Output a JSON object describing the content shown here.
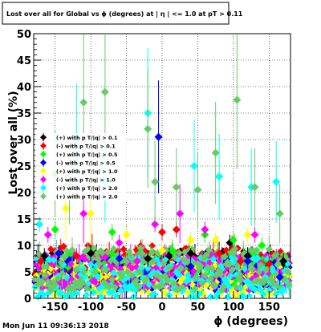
{
  "chart_data": {
    "type": "scatter",
    "title": "Lost over all for Global vs ϕ (degrees) at | η | <= 1.0 at pT > 0.11",
    "xlabel": "ϕ (degrees)",
    "ylabel": "Lost over all (%)",
    "xlim": [
      -180,
      180
    ],
    "ylim": [
      0,
      50
    ],
    "xticks": [
      -150,
      -100,
      -50,
      0,
      50,
      100,
      150
    ],
    "yticks": [
      0,
      5,
      10,
      15,
      20,
      25,
      30,
      35,
      40,
      45,
      50
    ],
    "grid": true,
    "legend_position": "middle-left",
    "timestamp": "Mon Jun 11 09:36:13 2018",
    "series": [
      {
        "name": "(+) with p T/|q| > 0.1",
        "color": "#000000",
        "marker": "diamond",
        "seed": 11,
        "base": 6.0,
        "spread": 3.0,
        "highlights": [
          [
            -165,
            8
          ],
          [
            -100,
            8.5
          ],
          [
            -20,
            7.5
          ],
          [
            10,
            8
          ],
          [
            40,
            8.5
          ],
          [
            95,
            10.5
          ],
          [
            120,
            8
          ],
          [
            170,
            7
          ]
        ]
      },
      {
        "name": "(-) with p T/|q| > 0.1",
        "color": "#ff0000",
        "marker": "diamond",
        "seed": 23,
        "base": 6.5,
        "spread": 3.5,
        "highlights": [
          [
            -170,
            7
          ],
          [
            -120,
            8
          ],
          [
            0,
            12.5
          ],
          [
            20,
            13
          ],
          [
            80,
            8.5
          ],
          [
            110,
            7
          ],
          [
            150,
            6.5
          ]
        ]
      },
      {
        "name": "(+) with p T/|q| > 0.5",
        "color": "#00ff00",
        "marker": "diamond",
        "seed": 37,
        "base": 5.0,
        "spread": 3.5,
        "highlights": [
          [
            -150,
            13
          ],
          [
            -70,
            12.5
          ],
          [
            15,
            9
          ],
          [
            60,
            12
          ],
          [
            100,
            11
          ],
          [
            140,
            10
          ]
        ]
      },
      {
        "name": "(-) with p T/|q| > 0.5",
        "color": "#0000ff",
        "marker": "diamond",
        "seed": 41,
        "base": 4.5,
        "spread": 3.0,
        "highlights": [
          [
            -145,
            8.5
          ],
          [
            -60,
            7.5
          ],
          [
            -5,
            30.5
          ],
          [
            40,
            6
          ],
          [
            120,
            7
          ],
          [
            165,
            4
          ]
        ]
      },
      {
        "name": "(+) with p T/|q| > 1.0",
        "color": "#ffff00",
        "marker": "diamond",
        "seed": 53,
        "base": 3.5,
        "spread": 3.0,
        "highlights": [
          [
            -135,
            17
          ],
          [
            -100,
            16
          ],
          [
            -50,
            12
          ],
          [
            0,
            9
          ],
          [
            40,
            11
          ],
          [
            75,
            11
          ],
          [
            120,
            12
          ]
        ]
      },
      {
        "name": "(-) with p T/|q| > 1.0",
        "color": "#ff00ff",
        "marker": "diamond",
        "seed": 67,
        "base": 5.0,
        "spread": 3.5,
        "highlights": [
          [
            -160,
            12
          ],
          [
            -110,
            16
          ],
          [
            -60,
            10.5
          ],
          [
            -35,
            7
          ],
          [
            -10,
            14
          ],
          [
            25,
            16
          ],
          [
            60,
            13
          ],
          [
            130,
            12
          ]
        ]
      },
      {
        "name": "(+) with p T/|q| > 2.0",
        "color": "#00ffff",
        "marker": "diamond",
        "seed": 79,
        "base": 4.0,
        "spread": 4.0,
        "highlights": [
          [
            -172,
            14
          ],
          [
            -120,
            30
          ],
          [
            -80,
            22
          ],
          [
            -20,
            35
          ],
          [
            45,
            25
          ],
          [
            80,
            23
          ],
          [
            125,
            21
          ],
          [
            160,
            22
          ]
        ]
      },
      {
        "name": "(+) with p T/|q| > 2.0",
        "color": "#66cc66",
        "marker": "diamond",
        "seed": 97,
        "base": 5.5,
        "spread": 4.0,
        "highlights": [
          [
            -150,
            23.5
          ],
          [
            -130,
            21.5
          ],
          [
            -110,
            37
          ],
          [
            -80,
            39
          ],
          [
            -20,
            32
          ],
          [
            -10,
            22
          ],
          [
            20,
            21
          ],
          [
            50,
            20.5
          ],
          [
            75,
            27.5
          ],
          [
            105,
            37.5
          ],
          [
            130,
            21
          ],
          [
            165,
            16
          ]
        ]
      }
    ]
  }
}
